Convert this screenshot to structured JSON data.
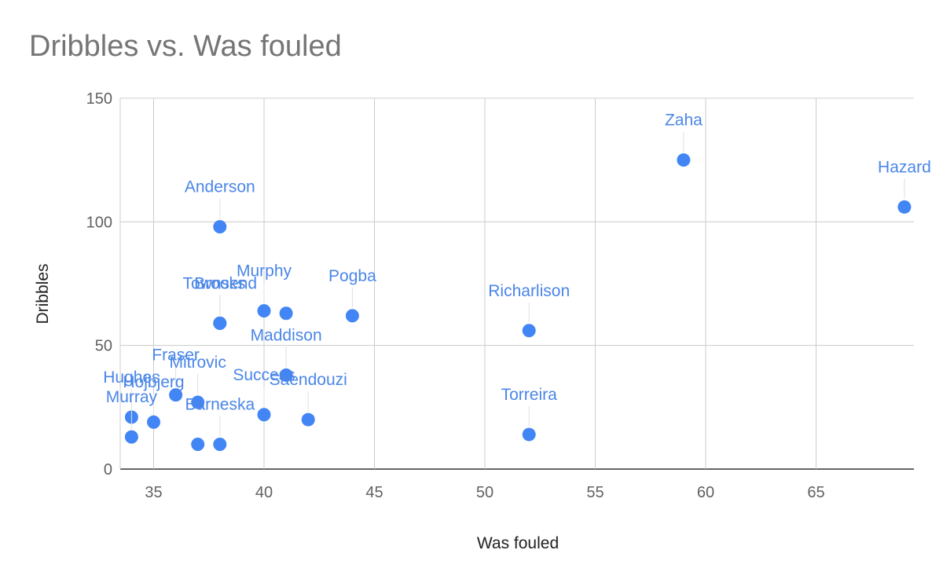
{
  "chart_data": {
    "type": "scatter",
    "title": "Dribbles vs. Was fouled",
    "xlabel": "Was fouled",
    "ylabel": "Dribbles",
    "xlim": [
      33.5,
      69.5
    ],
    "ylim": [
      0,
      150
    ],
    "xticks": [
      35,
      40,
      45,
      50,
      55,
      60,
      65
    ],
    "yticks": [
      0,
      50,
      100,
      150
    ],
    "grid": true,
    "colors": {
      "point": "#4285f4",
      "label": "#4a86e8",
      "grid": "#cccccc",
      "axis": "#333333"
    },
    "points": [
      {
        "label": "Zaha",
        "x": 59,
        "y": 125
      },
      {
        "label": "Hazard",
        "x": 69,
        "y": 106
      },
      {
        "label": "Anderson",
        "x": 38,
        "y": 98
      },
      {
        "label": "Murphy",
        "x": 40,
        "y": 64
      },
      {
        "label": "",
        "x": 41,
        "y": 63
      },
      {
        "label": "Pogba",
        "x": 44,
        "y": 62
      },
      {
        "label": "Townsend",
        "x": 38,
        "y": 59
      },
      {
        "label": "Richarlison",
        "x": 52,
        "y": 56
      },
      {
        "label": "Brooks",
        "x": 38,
        "y": 59
      },
      {
        "label": "Maddison",
        "x": 41,
        "y": 38
      },
      {
        "label": "Fraser",
        "x": 36,
        "y": 30
      },
      {
        "label": "Mitrovic",
        "x": 37,
        "y": 27
      },
      {
        "label": "Success",
        "x": 40,
        "y": 22
      },
      {
        "label": "Saendouzi",
        "x": 42,
        "y": 20
      },
      {
        "label": "Hughes",
        "x": 34,
        "y": 21
      },
      {
        "label": "Hojbjerg",
        "x": 35,
        "y": 19
      },
      {
        "label": "Murray",
        "x": 34,
        "y": 13
      },
      {
        "label": "Barneska",
        "x": 38,
        "y": 10
      },
      {
        "label": "",
        "x": 37,
        "y": 10
      },
      {
        "label": "Torreira",
        "x": 52,
        "y": 14
      }
    ]
  }
}
